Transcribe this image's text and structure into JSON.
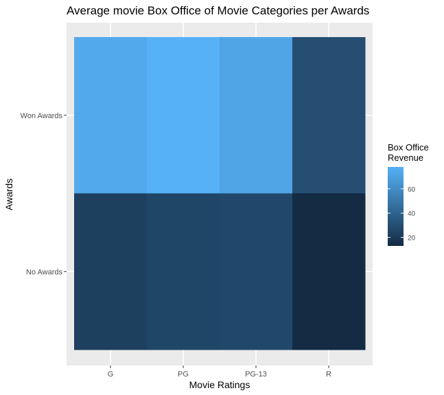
{
  "chart_data": {
    "type": "heatmap",
    "title": "Average movie Box Office of Movie Categories per Awards",
    "xlabel": "Movie Ratings",
    "ylabel": "Awards",
    "x_categories": [
      "G",
      "PG",
      "PG-13",
      "R"
    ],
    "y_categories": [
      "No Awards",
      "Won Awards"
    ],
    "values": {
      "Won Awards": [
        74,
        78,
        72,
        30
      ],
      "No Awards": [
        23,
        26,
        27,
        13
      ]
    },
    "legend": {
      "title_lines": [
        "Box Office",
        "Revenue"
      ],
      "ticks": [
        20,
        40,
        60
      ],
      "range": [
        13,
        78
      ],
      "low_color": "#132B43",
      "high_color": "#56B1F7",
      "placement": "right"
    },
    "panel_background": "#EBEBEB",
    "grid": true
  }
}
